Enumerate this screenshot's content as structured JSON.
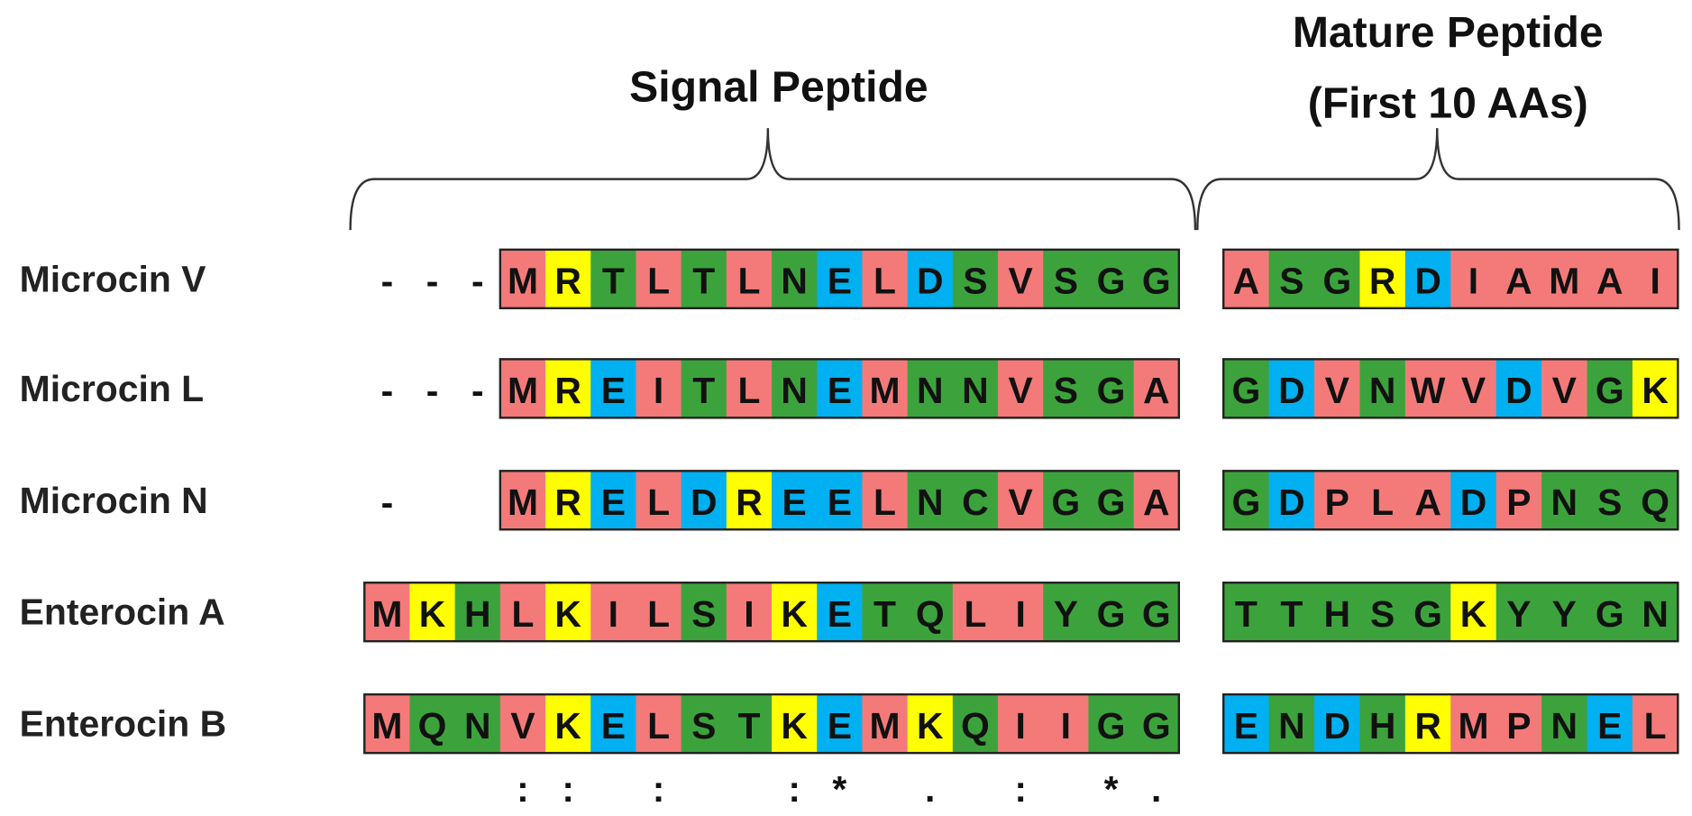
{
  "headers": {
    "signal": "Signal Peptide",
    "mature": [
      "Mature Peptide",
      "(First 10 AAs)"
    ]
  },
  "residue_colors": {
    "A": "#f47a7a",
    "I": "#f47a7a",
    "L": "#f47a7a",
    "M": "#f47a7a",
    "V": "#f47a7a",
    "W": "#f47a7a",
    "P": "#f47a7a",
    "G": "#3ca33c",
    "S": "#3ca33c",
    "T": "#3ca33c",
    "N": "#3ca33c",
    "Q": "#3ca33c",
    "C": "#3ca33c",
    "Y": "#3ca33c",
    "H": "#3ca33c",
    "K": "#ffff00",
    "R": "#ffff00",
    "D": "#00b0f0",
    "E": "#00b0f0"
  },
  "rows": [
    {
      "name": "Microcin V",
      "signal": [
        "-",
        "-",
        "-",
        "M",
        "R",
        "T",
        "L",
        "T",
        "L",
        "N",
        "E",
        "L",
        "D",
        "S",
        "V",
        "S",
        "G",
        "G"
      ],
      "mature": [
        "A",
        "S",
        "G",
        "R",
        "D",
        "I",
        "A",
        "M",
        "A",
        "I"
      ]
    },
    {
      "name": "Microcin L",
      "signal": [
        "-",
        "-",
        "-",
        "M",
        "R",
        "E",
        "I",
        "T",
        "L",
        "N",
        "E",
        "M",
        "N",
        "N",
        "V",
        "S",
        "G",
        "A"
      ],
      "mature": [
        "G",
        "D",
        "V",
        "N",
        "W",
        "V",
        "D",
        "V",
        "G",
        "K"
      ]
    },
    {
      "name": "Microcin N",
      "signal": [
        "-",
        null,
        null,
        "M",
        "R",
        "E",
        "L",
        "D",
        "R",
        "E",
        "E",
        "L",
        "N",
        "C",
        "V",
        "G",
        "G",
        "A"
      ],
      "mature": [
        "G",
        "D",
        "P",
        "L",
        "A",
        "D",
        "P",
        "N",
        "S",
        "Q"
      ]
    },
    {
      "name": "Enterocin A",
      "signal": [
        "M",
        "K",
        "H",
        "L",
        "K",
        "I",
        "L",
        "S",
        "I",
        "K",
        "E",
        "T",
        "Q",
        "L",
        "I",
        "Y",
        "G",
        "G"
      ],
      "mature": [
        "T",
        "T",
        "H",
        "S",
        "G",
        "K",
        "Y",
        "Y",
        "G",
        "N"
      ]
    },
    {
      "name": "Enterocin B",
      "signal": [
        "M",
        "Q",
        "N",
        "V",
        "K",
        "E",
        "L",
        "S",
        "T",
        "K",
        "E",
        "M",
        "K",
        "Q",
        "I",
        "I",
        "G",
        "G"
      ],
      "mature": [
        "E",
        "N",
        "D",
        "H",
        "R",
        "M",
        "P",
        "N",
        "E",
        "L"
      ]
    }
  ],
  "conservation": [
    null,
    null,
    null,
    ":",
    ":",
    null,
    ":",
    null,
    null,
    ":",
    "*",
    null,
    ".",
    null,
    ":",
    null,
    "*",
    "."
  ]
}
